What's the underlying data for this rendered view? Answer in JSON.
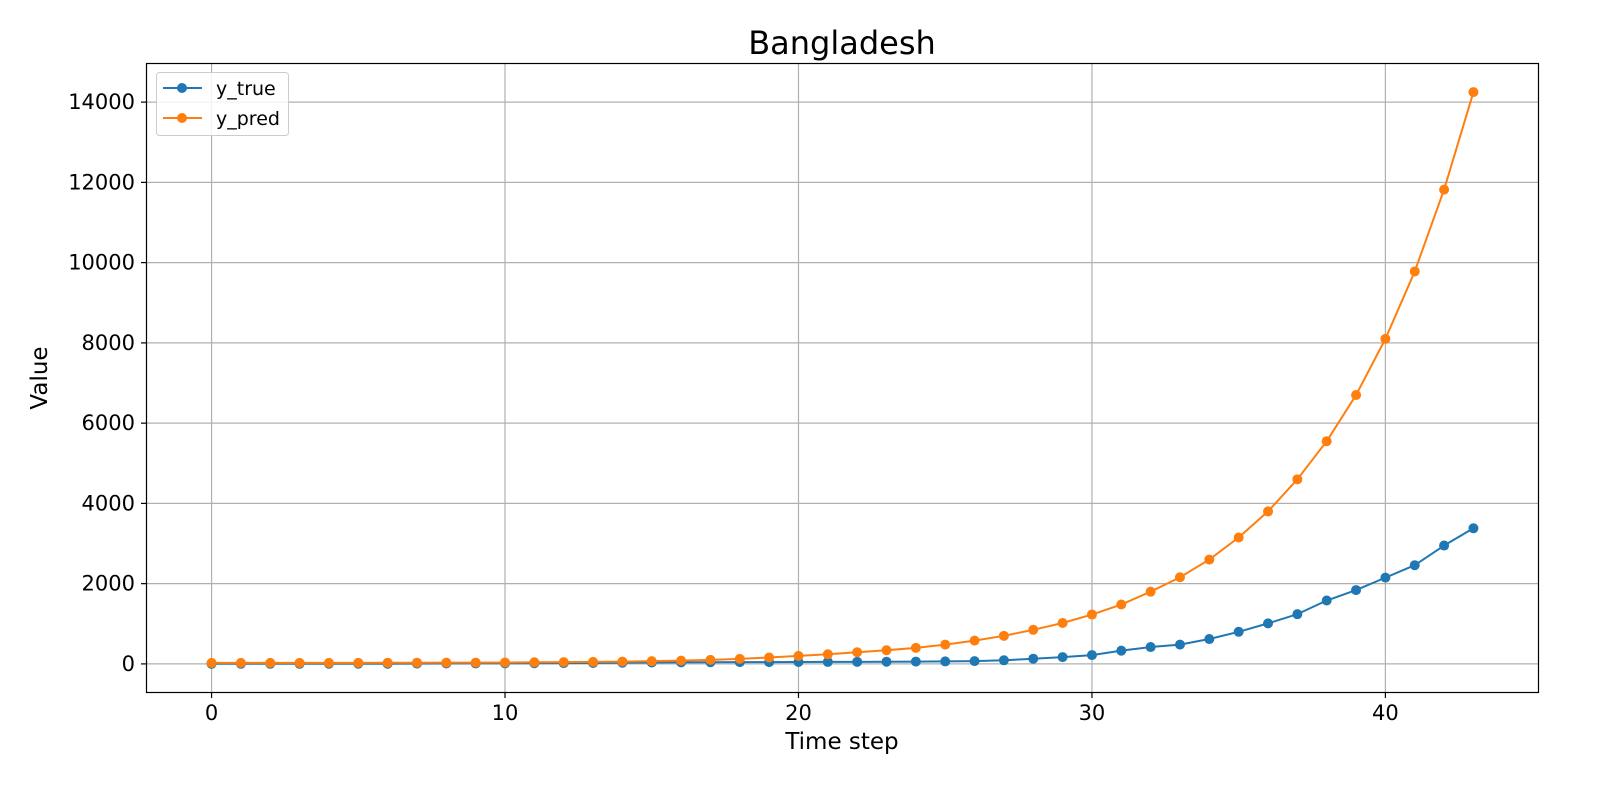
{
  "chart_data": {
    "type": "line",
    "title": "Bangladesh",
    "xlabel": "Time step",
    "ylabel": "Value",
    "xlim": [
      -2.2,
      45.2
    ],
    "ylim": [
      -700,
      14950
    ],
    "xticks": [
      0,
      10,
      20,
      30,
      40
    ],
    "yticks": [
      0,
      2000,
      4000,
      6000,
      8000,
      10000,
      12000,
      14000
    ],
    "grid": true,
    "legend_position": "top-left",
    "x": [
      0,
      1,
      2,
      3,
      4,
      5,
      6,
      7,
      8,
      9,
      10,
      11,
      12,
      13,
      14,
      15,
      16,
      17,
      18,
      19,
      20,
      21,
      22,
      23,
      24,
      25,
      26,
      27,
      28,
      29,
      30,
      31,
      32,
      33,
      34,
      35,
      36,
      37,
      38,
      39,
      40,
      41,
      42,
      43
    ],
    "series": [
      {
        "name": "y_true",
        "color": "#1f77b4",
        "values": [
          3,
          3,
          3,
          3,
          4,
          4,
          5,
          8,
          10,
          12,
          14,
          17,
          20,
          24,
          30,
          35,
          39,
          42,
          44,
          46,
          48,
          50,
          52,
          55,
          58,
          62,
          70,
          90,
          130,
          170,
          220,
          330,
          420,
          480,
          620,
          800,
          1010,
          1240,
          1580,
          1840,
          2150,
          2460,
          2950,
          3380
        ]
      },
      {
        "name": "y_pred",
        "color": "#ff7f0e",
        "values": [
          25,
          25,
          25,
          26,
          26,
          27,
          28,
          30,
          31,
          33,
          36,
          40,
          44,
          50,
          58,
          68,
          82,
          100,
          125,
          160,
          200,
          240,
          290,
          340,
          400,
          480,
          580,
          700,
          850,
          1020,
          1230,
          1480,
          1800,
          2160,
          2600,
          3150,
          3800,
          4600,
          5550,
          6700,
          8100,
          9780,
          11820,
          14250
        ]
      }
    ]
  }
}
